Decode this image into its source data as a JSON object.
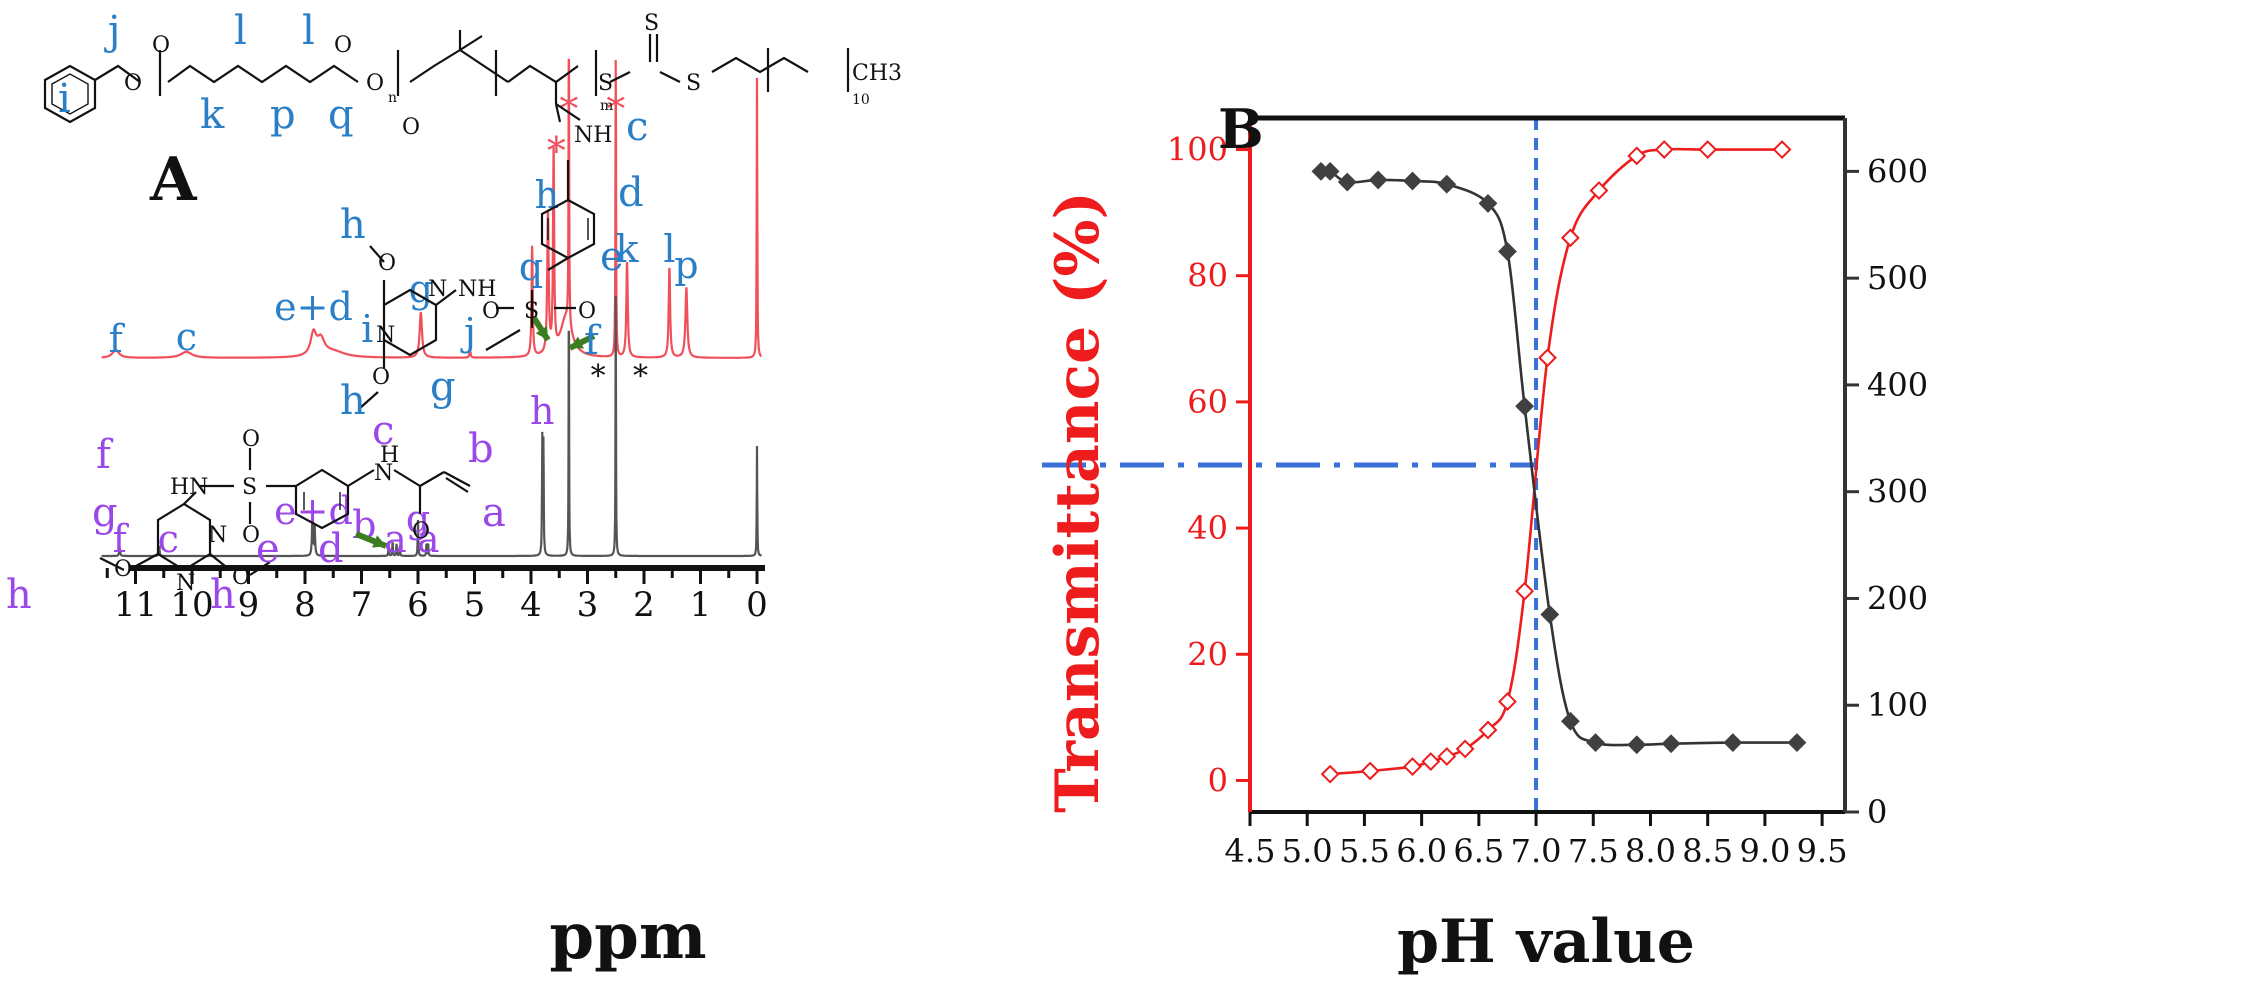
{
  "panel_a": {
    "letter": "A",
    "x_axis_label": "ppm",
    "x_ticks": [
      "11",
      "10",
      "9",
      "8",
      "7",
      "6",
      "5",
      "4",
      "3",
      "2",
      "1",
      "0"
    ],
    "top_spectrum_color": "#f0505a",
    "bottom_spectrum_color": "#555555",
    "polymer_label_color": "#2a7fc6",
    "monomer_label_color": "#9b48e8",
    "arrow_color": "#3c7d22",
    "polymer_structure": {
      "labels": [
        "i",
        "j",
        "k",
        "l",
        "p",
        "l",
        "q",
        "c",
        "d",
        "e",
        "f",
        "g",
        "h",
        "h"
      ],
      "subscripts": [
        "n",
        "m",
        "10"
      ],
      "atoms": [
        "O",
        "O",
        "O",
        "O",
        "O",
        "S",
        "S",
        "S",
        "CH3",
        "NH",
        "S",
        "O",
        "O",
        "NH",
        "N",
        "N",
        "O",
        "O"
      ]
    },
    "monomer_structure": {
      "labels": [
        "f",
        "g",
        "e",
        "d",
        "c",
        "b",
        "a",
        "h",
        "h"
      ],
      "atoms": [
        "HN",
        "S",
        "O",
        "O",
        "H",
        "N",
        "O",
        "N",
        "N",
        "O",
        "O"
      ]
    },
    "polymer_peak_labels": [
      {
        "text": "f",
        "ppm": 11.35
      },
      {
        "text": "c",
        "ppm": 10.1
      },
      {
        "text": "e+d",
        "ppm": 7.85
      },
      {
        "text": "i",
        "ppm": 6.9
      },
      {
        "text": "g",
        "ppm": 5.95
      },
      {
        "text": "j",
        "ppm": 5.08
      },
      {
        "text": "q",
        "ppm": 4.0
      },
      {
        "text": "h",
        "ppm": 3.72
      },
      {
        "text": "k",
        "ppm": 2.3
      },
      {
        "text": "l",
        "ppm": 1.55
      },
      {
        "text": "p",
        "ppm": 1.25
      }
    ],
    "monomer_peak_labels": [
      {
        "text": "f",
        "ppm": 11.28
      },
      {
        "text": "c",
        "ppm": 10.42
      },
      {
        "text": "e+d",
        "ppm": 7.85
      },
      {
        "text": "b",
        "ppm": 6.95
      },
      {
        "text": "a",
        "ppm": 6.4
      },
      {
        "text": "g",
        "ppm": 6.0
      },
      {
        "text": "a",
        "ppm": 5.82
      },
      {
        "text": "h",
        "ppm": 3.8
      }
    ],
    "solvent_marks": [
      {
        "text": "*",
        "ppm": 3.55,
        "spectrum": "polymer"
      },
      {
        "text": "*",
        "ppm": 3.33,
        "spectrum": "polymer"
      },
      {
        "text": "*",
        "ppm": 2.5,
        "spectrum": "polymer"
      },
      {
        "text": "*",
        "ppm": 3.13,
        "spectrum": "monomer"
      },
      {
        "text": "*",
        "ppm": 2.38,
        "spectrum": "monomer"
      }
    ]
  },
  "panel_b": {
    "letter": "B",
    "xlabel": "pH value",
    "ylabel_left": "Transmittance (%)",
    "ylabel_right": "",
    "left_axis_color": "#ee1c1c",
    "right_axis_color": "#333333",
    "guide_color": "#3a6fd8",
    "x_ticks": [
      "4.5",
      "5.0",
      "5.5",
      "6.0",
      "6.5",
      "7.0",
      "7.5",
      "8.0",
      "8.5",
      "9.0",
      "9.5"
    ],
    "y_left_ticks": [
      "0",
      "20",
      "40",
      "60",
      "80",
      "100"
    ],
    "y_right_ticks": [
      "0",
      "100",
      "200",
      "300",
      "400",
      "500",
      "600"
    ]
  },
  "chart_data": [
    {
      "type": "line",
      "title": "",
      "xlabel": "ppm",
      "xlim": [
        11.6,
        -0.1
      ],
      "x_reversed": true,
      "series": [
        {
          "name": "",
          "peaks_ppm": [
            11.35,
            10.1,
            7.85,
            7.75,
            5.95,
            3.98,
            3.7,
            3.6,
            3.33,
            2.5,
            2.3,
            1.55,
            1.25,
            0.0
          ]
        },
        {
          "name": "",
          "peaks_ppm": [
            11.28,
            10.58,
            7.85,
            6.52,
            6.45,
            6.38,
            6.32,
            6.0,
            5.85,
            5.82,
            3.8,
            3.78,
            3.33,
            2.5,
            0.0
          ]
        }
      ]
    },
    {
      "type": "line",
      "title": "",
      "xlabel": "pH value",
      "ylabel": "Transmittance (%)",
      "xlim": [
        4.5,
        9.7
      ],
      "ylim": [
        -5,
        105
      ],
      "ylim_right": [
        0,
        650
      ],
      "series": [
        {
          "name": "Transmittance (%)",
          "axis": "left",
          "x": [
            5.2,
            5.55,
            5.92,
            6.08,
            6.22,
            6.38,
            6.58,
            6.75,
            6.9,
            7.1,
            7.3,
            7.55,
            7.88,
            8.12,
            8.5,
            9.15
          ],
          "y": [
            1,
            1.5,
            2.2,
            3,
            3.8,
            5,
            8,
            12.5,
            30,
            67,
            86,
            93.5,
            99,
            100,
            100,
            100
          ]
        },
        {
          "name": "",
          "axis": "right",
          "x": [
            5.12,
            5.2,
            5.35,
            5.62,
            5.92,
            6.22,
            6.58,
            6.75,
            6.9,
            7.12,
            7.3,
            7.52,
            7.88,
            8.18,
            8.72,
            9.28
          ],
          "y": [
            600,
            600,
            590,
            592,
            591,
            588,
            570,
            525,
            380,
            185,
            85,
            65,
            63,
            64,
            65,
            65
          ]
        }
      ],
      "annotations": [
        {
          "type": "vline",
          "x": 7.0
        },
        {
          "type": "hline",
          "y": 50,
          "x_from": 4.5,
          "x_to": 7.0
        }
      ]
    }
  ]
}
